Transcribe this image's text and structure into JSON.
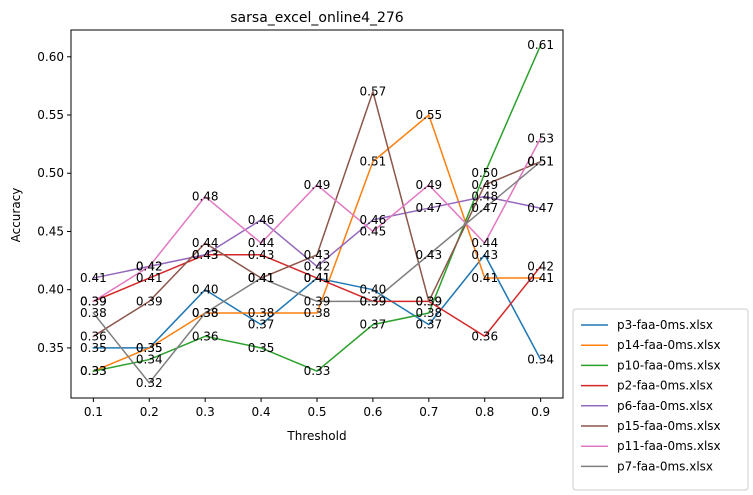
{
  "chart_data": {
    "type": "line",
    "title": "sarsa_excel_online4_276",
    "xlabel": "Threshold",
    "ylabel": "Accuracy",
    "x": [
      0.1,
      0.2,
      0.3,
      0.4,
      0.5,
      0.6,
      0.7,
      0.8,
      0.9
    ],
    "xticks": [
      "0.1",
      "0.2",
      "0.3",
      "0.4",
      "0.5",
      "0.6",
      "0.7",
      "0.8",
      "0.9"
    ],
    "yticks": [
      "0.35",
      "0.40",
      "0.45",
      "0.50",
      "0.55",
      "0.60"
    ],
    "ytick_values": [
      0.35,
      0.4,
      0.45,
      0.5,
      0.55,
      0.6
    ],
    "xlim": [
      0.06,
      0.94
    ],
    "ylim": [
      0.307,
      0.623
    ],
    "grid": false,
    "legend_position": "outside-bottom-right",
    "series": [
      {
        "name": "p3-faa-0ms.xlsx",
        "color": "#1f77b4",
        "values": [
          0.35,
          0.35,
          0.4,
          0.37,
          0.41,
          0.4,
          0.37,
          0.43,
          0.34
        ]
      },
      {
        "name": "p14-faa-0ms.xlsx",
        "color": "#ff7f0e",
        "values": [
          0.33,
          0.35,
          0.38,
          0.38,
          0.38,
          0.51,
          0.55,
          0.41,
          0.41
        ]
      },
      {
        "name": "p10-faa-0ms.xlsx",
        "color": "#2ca02c",
        "values": [
          0.33,
          0.34,
          0.36,
          0.35,
          0.33,
          0.37,
          0.38,
          0.5,
          0.61
        ]
      },
      {
        "name": "p2-faa-0ms.xlsx",
        "color": "#d62728",
        "values": [
          0.39,
          0.41,
          0.43,
          0.43,
          0.41,
          0.39,
          0.39,
          0.36,
          0.42
        ]
      },
      {
        "name": "p6-faa-0ms.xlsx",
        "color": "#9467bd",
        "values": [
          0.41,
          0.42,
          0.43,
          0.46,
          0.42,
          0.46,
          0.47,
          0.48,
          0.47
        ]
      },
      {
        "name": "p15-faa-0ms.xlsx",
        "color": "#8c564b",
        "values": [
          0.36,
          0.39,
          0.44,
          0.41,
          0.43,
          0.57,
          0.39,
          0.49,
          0.51
        ]
      },
      {
        "name": "p11-faa-0ms.xlsx",
        "color": "#e377c2",
        "values": [
          0.39,
          0.42,
          0.48,
          0.44,
          0.49,
          0.45,
          0.49,
          0.44,
          0.53
        ]
      },
      {
        "name": "p7-faa-0ms.xlsx",
        "color": "#7f7f7f",
        "values": [
          0.38,
          0.32,
          0.38,
          0.41,
          0.39,
          0.39,
          0.43,
          0.47,
          0.51
        ]
      }
    ]
  }
}
